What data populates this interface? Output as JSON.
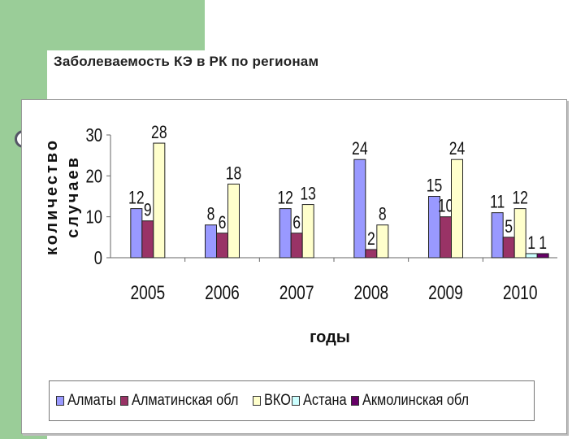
{
  "slide": {
    "title": "Заболеваемость КЭ в РК по регионам",
    "colors": {
      "background": "#ffffff",
      "accent_green": "#9acd98"
    }
  },
  "chart_data": {
    "type": "bar",
    "title": "",
    "xlabel": "годы",
    "ylabel": "количество случаев",
    "ylim": [
      0,
      30
    ],
    "yticks": [
      0,
      10,
      20,
      30
    ],
    "grid": false,
    "legend_position": "bottom",
    "categories": [
      "2005",
      "2006",
      "2007",
      "2008",
      "2009",
      "2010"
    ],
    "series": [
      {
        "name": "Алматы",
        "color": "#9999ff",
        "values": [
          12,
          8,
          12,
          24,
          15,
          11
        ]
      },
      {
        "name": "Алматинская обл",
        "color": "#993366",
        "values": [
          9,
          6,
          6,
          2,
          10,
          5
        ]
      },
      {
        "name": "ВКО",
        "color": "#ffffcc",
        "values": [
          28,
          18,
          13,
          8,
          24,
          12
        ]
      },
      {
        "name": "Астана",
        "color": "#ccffff",
        "values": [
          null,
          null,
          null,
          null,
          null,
          1
        ]
      },
      {
        "name": "Акмолинская обл",
        "color": "#660066",
        "values": [
          null,
          null,
          null,
          null,
          null,
          1
        ]
      }
    ]
  }
}
